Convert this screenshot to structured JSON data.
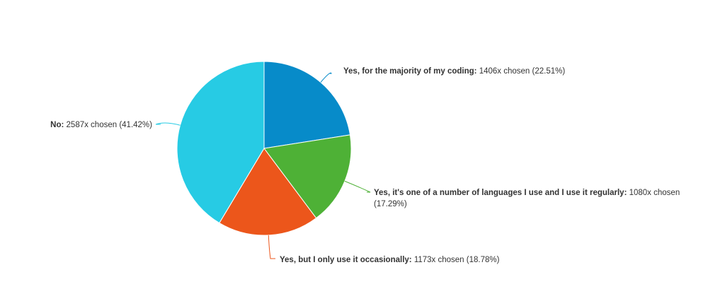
{
  "chart_data": {
    "type": "pie",
    "title": "",
    "slices": [
      {
        "label": "Yes, for the majority of my coding",
        "count_text": "1406x chosen (22.51%)",
        "count": 1406,
        "percent": 22.51,
        "color": "#078bc9"
      },
      {
        "label": "Yes, it's one of a number of languages I use and I use it regularly",
        "count_text": "1080x chosen",
        "count_text_2": "(17.29%)",
        "count": 1080,
        "percent": 17.29,
        "color": "#4eb136"
      },
      {
        "label": "Yes, but I only use it occasionally",
        "count_text": "1173x chosen (18.78%)",
        "count": 1173,
        "percent": 18.78,
        "color": "#ec561b"
      },
      {
        "label": "No",
        "count_text": "2587x chosen (41.42%)",
        "count": 2587,
        "percent": 41.42,
        "color": "#27cbe4"
      }
    ],
    "legend": "none",
    "start_angle": "12 o'clock",
    "direction": "clockwise"
  }
}
